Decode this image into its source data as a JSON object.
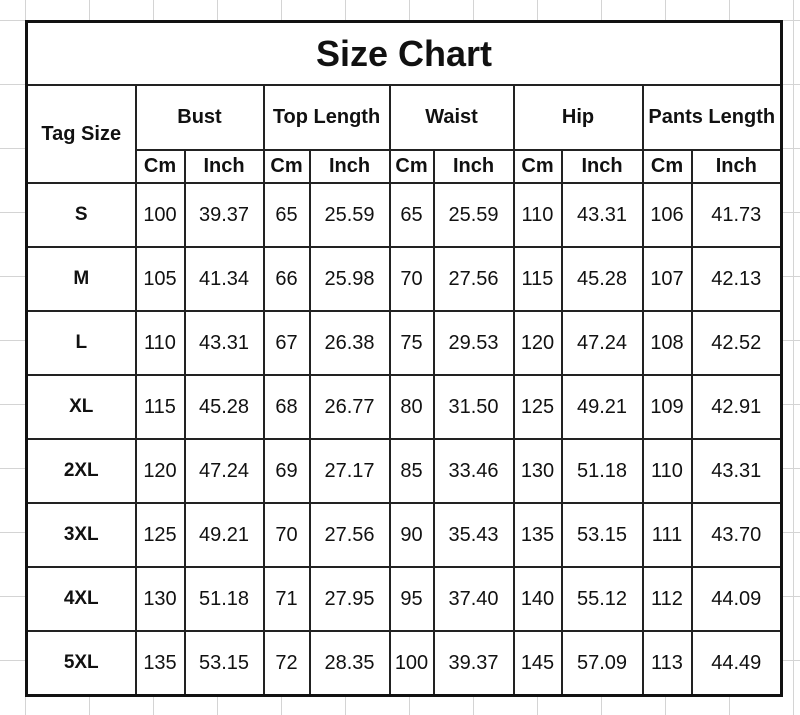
{
  "title": "Size Chart",
  "headers": {
    "tag_size": "Tag Size",
    "groups": [
      "Bust",
      "Top Length",
      "Waist",
      "Hip",
      "Pants Length"
    ],
    "units": [
      "Cm",
      "Inch"
    ]
  },
  "rows": [
    {
      "size": "S",
      "values": [
        "100",
        "39.37",
        "65",
        "25.59",
        "65",
        "25.59",
        "110",
        "43.31",
        "106",
        "41.73"
      ]
    },
    {
      "size": "M",
      "values": [
        "105",
        "41.34",
        "66",
        "25.98",
        "70",
        "27.56",
        "115",
        "45.28",
        "107",
        "42.13"
      ]
    },
    {
      "size": "L",
      "values": [
        "110",
        "43.31",
        "67",
        "26.38",
        "75",
        "29.53",
        "120",
        "47.24",
        "108",
        "42.52"
      ]
    },
    {
      "size": "XL",
      "values": [
        "115",
        "45.28",
        "68",
        "26.77",
        "80",
        "31.50",
        "125",
        "49.21",
        "109",
        "42.91"
      ]
    },
    {
      "size": "2XL",
      "values": [
        "120",
        "47.24",
        "69",
        "27.17",
        "85",
        "33.46",
        "130",
        "51.18",
        "110",
        "43.31"
      ]
    },
    {
      "size": "3XL",
      "values": [
        "125",
        "49.21",
        "70",
        "27.56",
        "90",
        "35.43",
        "135",
        "53.15",
        "111",
        "43.70"
      ]
    },
    {
      "size": "4XL",
      "values": [
        "130",
        "51.18",
        "71",
        "27.95",
        "95",
        "37.40",
        "140",
        "55.12",
        "112",
        "44.09"
      ]
    },
    {
      "size": "5XL",
      "values": [
        "135",
        "53.15",
        "72",
        "28.35",
        "100",
        "39.37",
        "145",
        "57.09",
        "113",
        "44.49"
      ]
    }
  ]
}
